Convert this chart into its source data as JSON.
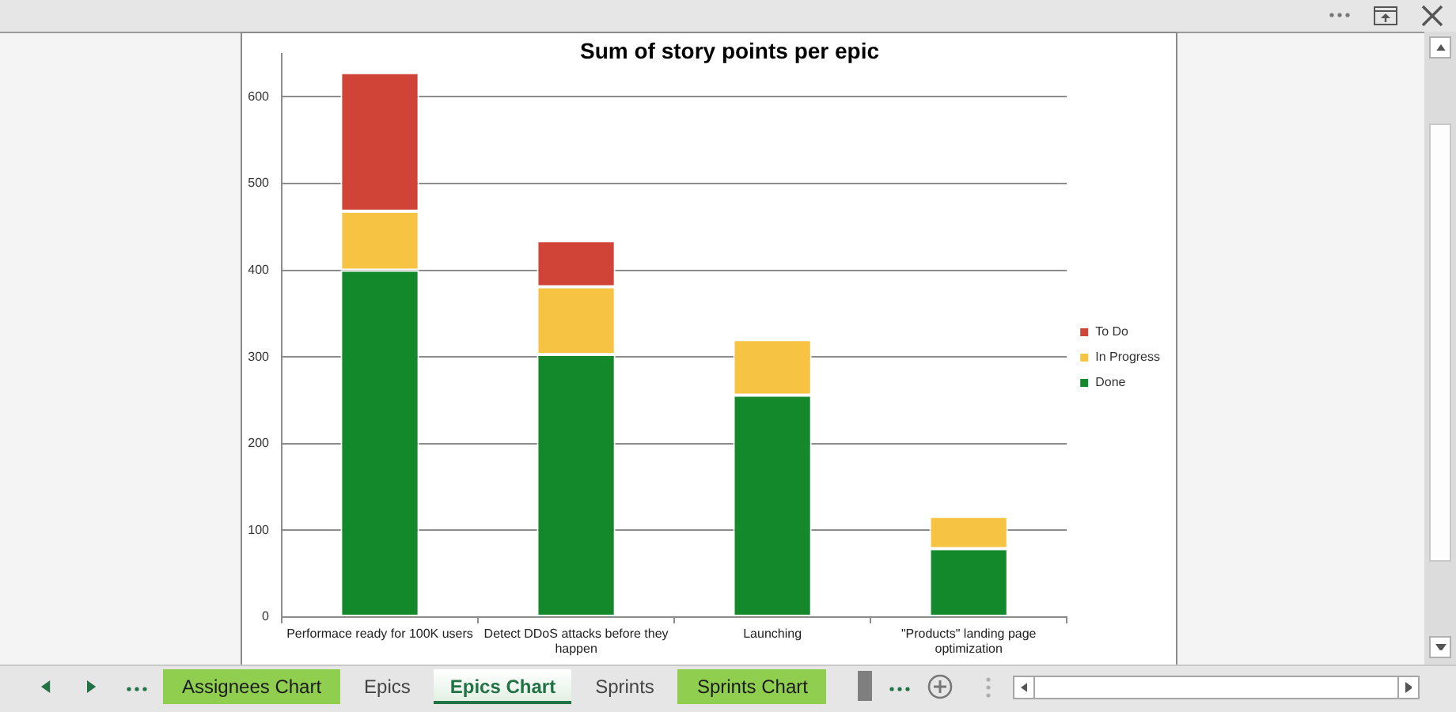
{
  "chart_data": {
    "type": "bar",
    "title": "Sum of story points per epic",
    "categories": [
      "Performace ready for 100K users",
      "Detect DDoS attacks before they happen",
      "Launching",
      "\"Products\" landing page optimization"
    ],
    "series": [
      {
        "name": "Done",
        "color": "#14892c",
        "values": [
          400,
          303,
          256,
          79
        ]
      },
      {
        "name": "In Progress",
        "color": "#f6c342",
        "values": [
          68,
          78,
          64,
          37
        ]
      },
      {
        "name": "To Do",
        "color": "#d04437",
        "values": [
          160,
          53,
          null,
          null
        ]
      }
    ],
    "stacked": true,
    "ylim": [
      0,
      650
    ],
    "yticks": [
      0,
      100,
      200,
      300,
      400,
      500,
      600
    ],
    "grid": "y",
    "legend": "right",
    "annotations": [
      "Assignees Chart",
      "Epics",
      "Epics Chart",
      "Sprints",
      "Sprints Chart"
    ]
  }
}
